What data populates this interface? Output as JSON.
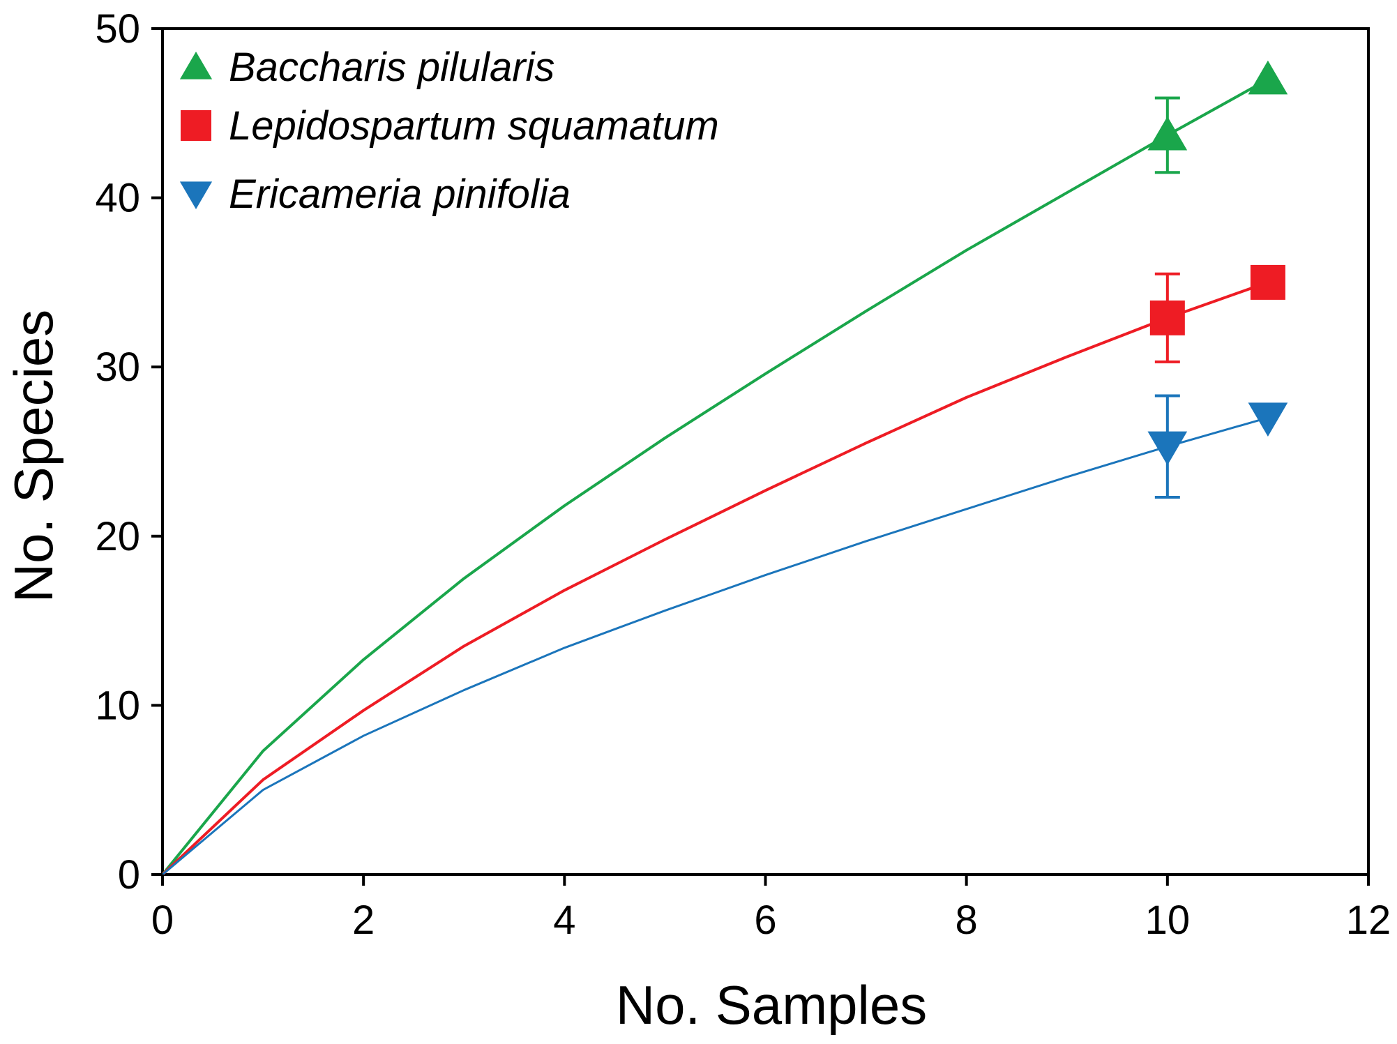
{
  "chart_data": {
    "type": "line",
    "title": "",
    "xlabel": "No. Samples",
    "ylabel": "No. Species",
    "xlim": [
      0,
      12
    ],
    "ylim": [
      0,
      50
    ],
    "xticks": [
      0,
      2,
      4,
      6,
      8,
      10,
      12
    ],
    "yticks": [
      0,
      10,
      20,
      30,
      40,
      50
    ],
    "grid": false,
    "legend_position": "top-left",
    "series": [
      {
        "name": "Baccharis pilularis",
        "color": "#1aa64b",
        "marker": "triangle-up",
        "x": [
          0,
          1,
          2,
          3,
          4,
          5,
          6,
          7,
          8,
          9,
          10,
          11
        ],
        "y": [
          0,
          7.3,
          12.7,
          17.5,
          21.8,
          25.8,
          29.6,
          33.3,
          36.9,
          40.3,
          43.7,
          47.0
        ],
        "markers": [
          {
            "x": 10,
            "y": 43.7,
            "err": 2.2
          },
          {
            "x": 11,
            "y": 47.0
          }
        ]
      },
      {
        "name": "Lepidospartum squamatum",
        "color": "#ee1c24",
        "marker": "square",
        "x": [
          0,
          1,
          2,
          3,
          4,
          5,
          6,
          7,
          8,
          9,
          10,
          11
        ],
        "y": [
          0,
          5.6,
          9.7,
          13.5,
          16.8,
          19.8,
          22.7,
          25.5,
          28.2,
          30.6,
          32.9,
          35.0
        ],
        "markers": [
          {
            "x": 10,
            "y": 32.9,
            "err": 2.6
          },
          {
            "x": 11,
            "y": 35.0
          }
        ]
      },
      {
        "name": "Ericameria pinifolia",
        "color": "#1b75bb",
        "marker": "triangle-down",
        "x": [
          0,
          1,
          2,
          3,
          4,
          5,
          6,
          7,
          8,
          9,
          10,
          11
        ],
        "y": [
          0,
          5.0,
          8.2,
          10.9,
          13.4,
          15.6,
          17.7,
          19.7,
          21.6,
          23.5,
          25.3,
          27.0
        ],
        "markers": [
          {
            "x": 10,
            "y": 25.3,
            "err": 3.0
          },
          {
            "x": 11,
            "y": 27.0
          }
        ]
      }
    ]
  }
}
